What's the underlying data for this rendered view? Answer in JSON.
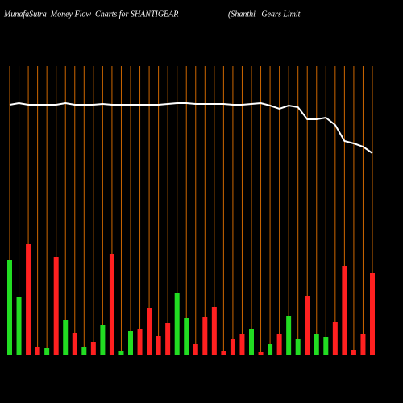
{
  "chart_data": {
    "type": "bar",
    "title": "MunafaSutra  Money Flow  Charts for SHANTIGEAR",
    "subtitle": "(Shanthi   Gears Limit",
    "values": [
      117,
      71,
      137,
      10,
      8,
      121,
      43,
      27,
      10,
      16,
      37,
      125,
      5,
      29,
      32,
      58,
      23,
      39,
      76,
      45,
      13,
      47,
      59,
      4,
      20,
      26,
      32,
      3,
      13,
      25,
      48,
      20,
      73,
      26,
      22,
      40,
      110,
      6,
      26,
      101
    ],
    "colors": [
      "#22dd22",
      "#22dd22",
      "#ff2020",
      "#ff2020",
      "#22dd22",
      "#ff2020",
      "#22dd22",
      "#ff2020",
      "#22dd22",
      "#ff2020",
      "#22dd22",
      "#ff2020",
      "#22dd22",
      "#22dd22",
      "#ff2020",
      "#ff2020",
      "#ff2020",
      "#ff2020",
      "#22dd22",
      "#22dd22",
      "#ff2020",
      "#ff2020",
      "#ff2020",
      "#ff2020",
      "#ff2020",
      "#ff2020",
      "#22dd22",
      "#ff2020",
      "#22dd22",
      "#ff2020",
      "#22dd22",
      "#22dd22",
      "#ff2020",
      "#22dd22",
      "#22dd22",
      "#ff2020",
      "#ff2020",
      "#ff2020",
      "#ff2020",
      "#ff2020"
    ],
    "line": {
      "color": "#ffffff",
      "values": [
        310,
        312,
        310,
        310,
        310,
        310,
        312,
        310,
        310,
        310,
        311,
        310,
        310,
        310,
        310,
        310,
        310,
        311,
        312,
        312,
        311,
        311,
        311,
        311,
        310,
        310,
        311,
        312,
        309,
        305,
        309,
        307,
        292,
        292,
        294,
        285,
        265,
        262,
        258,
        250
      ]
    },
    "guide_color": "#cc6600",
    "ylim": [
      0,
      360
    ]
  }
}
